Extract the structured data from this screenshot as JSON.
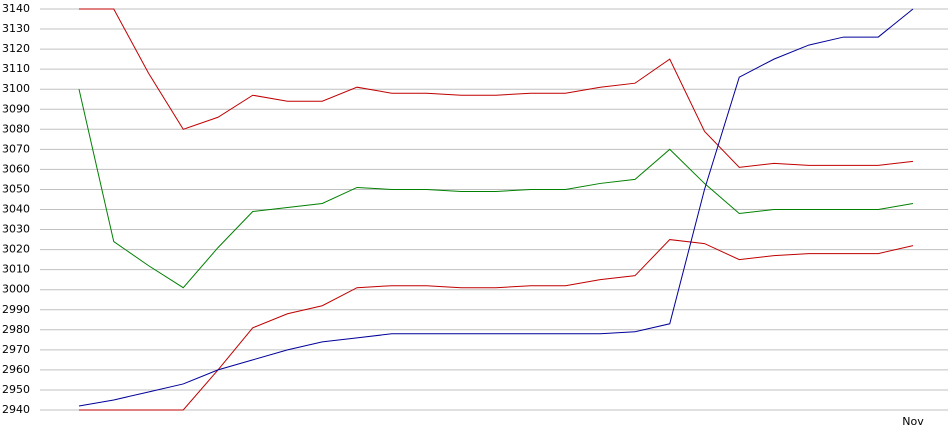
{
  "chart_data": {
    "type": "line",
    "categories": [
      null,
      null,
      null,
      null,
      null,
      null,
      null,
      null,
      null,
      null,
      null,
      null,
      null,
      null,
      null,
      null,
      null,
      null,
      null,
      null,
      null,
      null,
      null,
      null,
      "Nov"
    ],
    "series": [
      {
        "color": "#c00000",
        "values": [
          3140,
          3140,
          3108,
          3080,
          3086,
          3097,
          3094,
          3094,
          3101,
          3098,
          3098,
          3097,
          3097,
          3098,
          3098,
          3101,
          3103,
          3115,
          3079,
          3061,
          3063,
          3062,
          3062,
          3062,
          3064
        ]
      },
      {
        "color": "#008000",
        "values": [
          3100,
          3024,
          3012,
          3001,
          3021,
          3039,
          3041,
          3043,
          3051,
          3050,
          3050,
          3049,
          3049,
          3050,
          3050,
          3053,
          3055,
          3070,
          3053,
          3038,
          3040,
          3040,
          3040,
          3040,
          3043
        ]
      },
      {
        "color": "#c00000",
        "values": [
          2940,
          2940,
          2940,
          2940,
          2960,
          2981,
          2988,
          2992,
          3001,
          3002,
          3002,
          3001,
          3001,
          3002,
          3002,
          3005,
          3007,
          3025,
          3023,
          3015,
          3017,
          3018,
          3018,
          3018,
          3022
        ]
      },
      {
        "color": "#000099",
        "values": [
          2942,
          2945,
          2949,
          2953,
          2960,
          2965,
          2970,
          2974,
          2976,
          2978,
          2978,
          2978,
          2978,
          2978,
          2978,
          2978,
          2979,
          2983,
          3050,
          3106,
          3115,
          3122,
          3126,
          3126,
          3140
        ]
      }
    ],
    "ylim": [
      2940,
      3140
    ],
    "yticks": [
      2940,
      2950,
      2960,
      2970,
      2980,
      2990,
      3000,
      3010,
      3020,
      3030,
      3040,
      3050,
      3060,
      3070,
      3080,
      3090,
      3100,
      3110,
      3120,
      3130,
      3140
    ],
    "grid": true
  }
}
